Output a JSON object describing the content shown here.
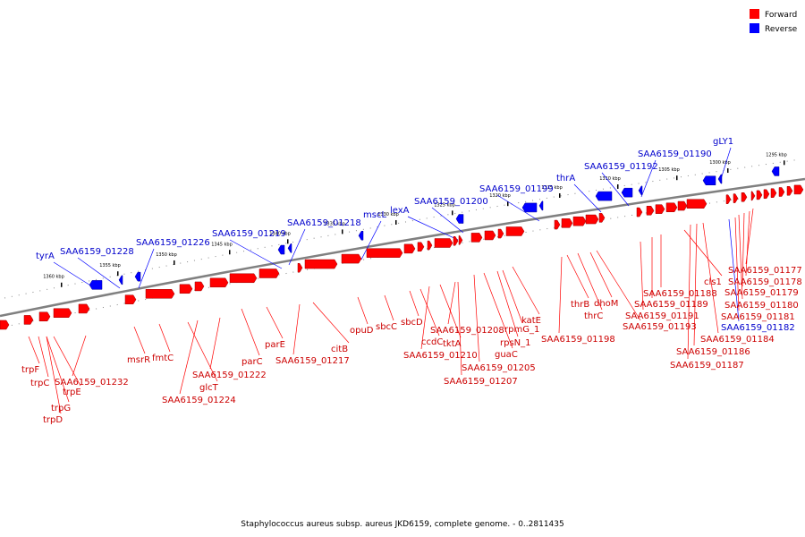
{
  "legend": [
    {
      "label": "Forward",
      "color": "#ff0000"
    },
    {
      "label": "Reverse",
      "color": "#0000ff"
    }
  ],
  "colors": {
    "forward": "#ff0000",
    "reverse": "#0000ff",
    "forward_label": "#cc0000",
    "reverse_label": "#0000cc",
    "backbone": "#808080"
  },
  "footer": "Staphylococcus aureus subsp. aureus JKD6159, complete genome. - 0..2811435",
  "scale_labels": [
    "1295 kbp",
    "1300 kbp",
    "1305 kbp",
    "1310 kbp",
    "1315 kbp",
    "1320 kbp",
    "1325 kbp",
    "1330 kbp",
    "1335 kbp",
    "1340 kbp",
    "1345 kbp",
    "1350 kbp",
    "1355 kbp",
    "1360 kbp"
  ],
  "reverse_genes": [
    "tyrA",
    "SAA6159_01228",
    "SAA6159_01226",
    "SAA6159_01219",
    "SAA6159_01218",
    "mscL",
    "lexA",
    "SAA6159_01200",
    "SAA6159_01199",
    "thrA",
    "SAA6159_01192",
    "SAA6159_01190",
    "gLY1"
  ],
  "forward_genes": [
    "trpF",
    "trpC",
    "trpG",
    "trpD",
    "trpE",
    "SAA6159_01232",
    "msrR",
    "fmtC",
    "glcT",
    "SAA6159_01224",
    "SAA6159_01222",
    "parC",
    "parE",
    "SAA6159_01217",
    "citB",
    "opuD",
    "sbcC",
    "sbcD",
    "ccdC",
    "SAA6159_01210",
    "tktA",
    "SAA6159_01208",
    "SAA6159_01207",
    "SAA6159_01205",
    "guaC",
    "rpsN_1",
    "rpmG_1",
    "katE",
    "SAA6159_01198",
    "thrB",
    "thrC",
    "dhoM",
    "SAA6159_01193",
    "SAA6159_01191",
    "SAA6159_01189",
    "SAA6159_01188",
    "cls1",
    "SAA6159_01187",
    "SAA6159_01186",
    "SAA6159_01184",
    "SAA6159_01182",
    "SAA6159_01181",
    "SAA6159_01180",
    "SAA6159_01179",
    "SAA6159_01178",
    "SAA6159_01177"
  ],
  "blue_label_forward_side": [
    "SAA6159_01182"
  ]
}
